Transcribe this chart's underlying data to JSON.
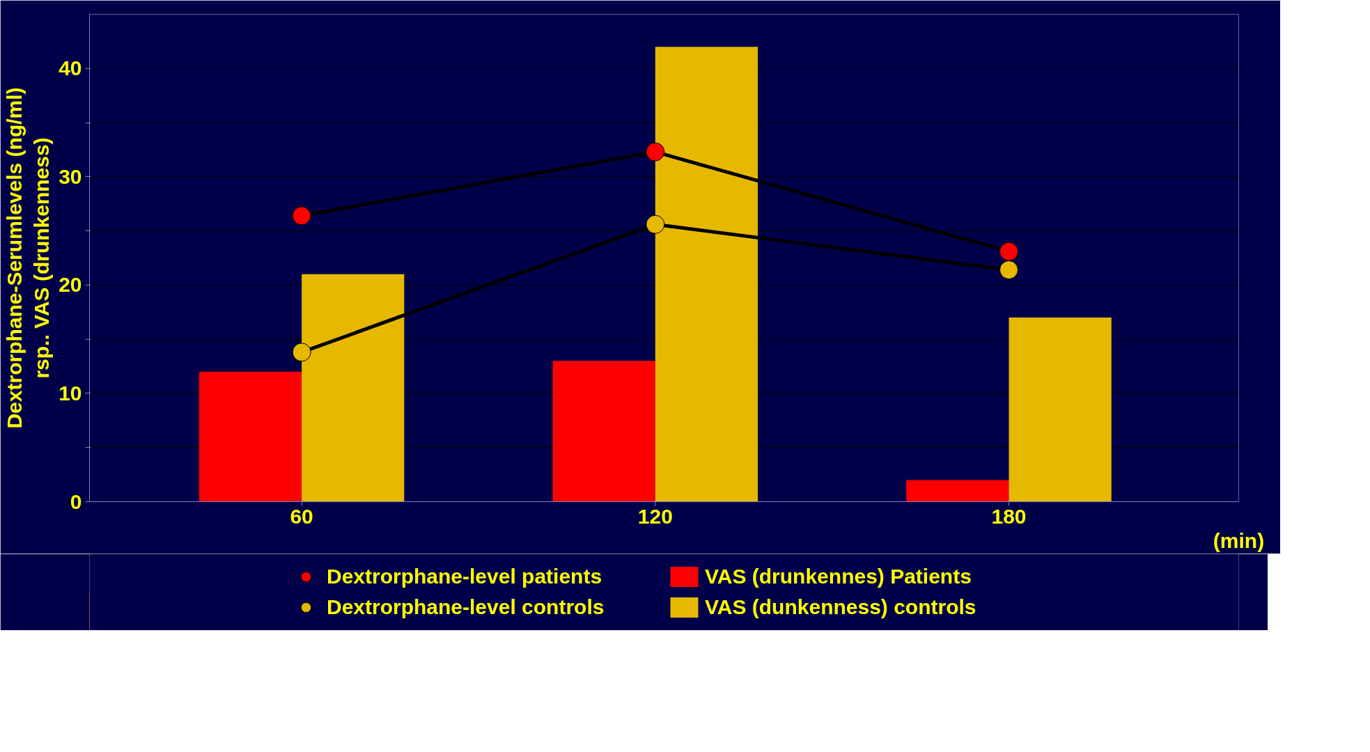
{
  "chart_data": {
    "type": "bar",
    "categories": [
      "60",
      "120",
      "180"
    ],
    "xlabel": "(min)",
    "ylabel": "Dextrorphane-Serumlevels (ng/ml)\nrsp.. VAS (drunkenness)",
    "ylim": [
      0,
      45
    ],
    "yticks": [
      0,
      {
        "value": 5,
        "label": null
      },
      10,
      {
        "value": 15,
        "label": null
      },
      20,
      {
        "value": 25,
        "label": null
      },
      30,
      {
        "value": 35,
        "label": null
      },
      40
    ],
    "grid": "y",
    "legend": "bottom",
    "marker": "circle",
    "series": [
      {
        "name": "VAS (drunkennes) Patients",
        "color": "#ff0000",
        "values": [
          12.0,
          13.0,
          2.0
        ]
      },
      {
        "name": "VAS (dunkenness) controls",
        "color": "#e6b800",
        "values": [
          21.0,
          42.0,
          17.0
        ]
      },
      {
        "name": "Dextrorphane-level patients",
        "type": "line",
        "color": "#ff0000",
        "values": [
          26.4,
          32.3,
          23.1
        ]
      },
      {
        "name": "Dextrorphane-level controls",
        "type": "line",
        "color": "#e6b800",
        "values": [
          13.8,
          25.6,
          21.4
        ]
      }
    ]
  }
}
